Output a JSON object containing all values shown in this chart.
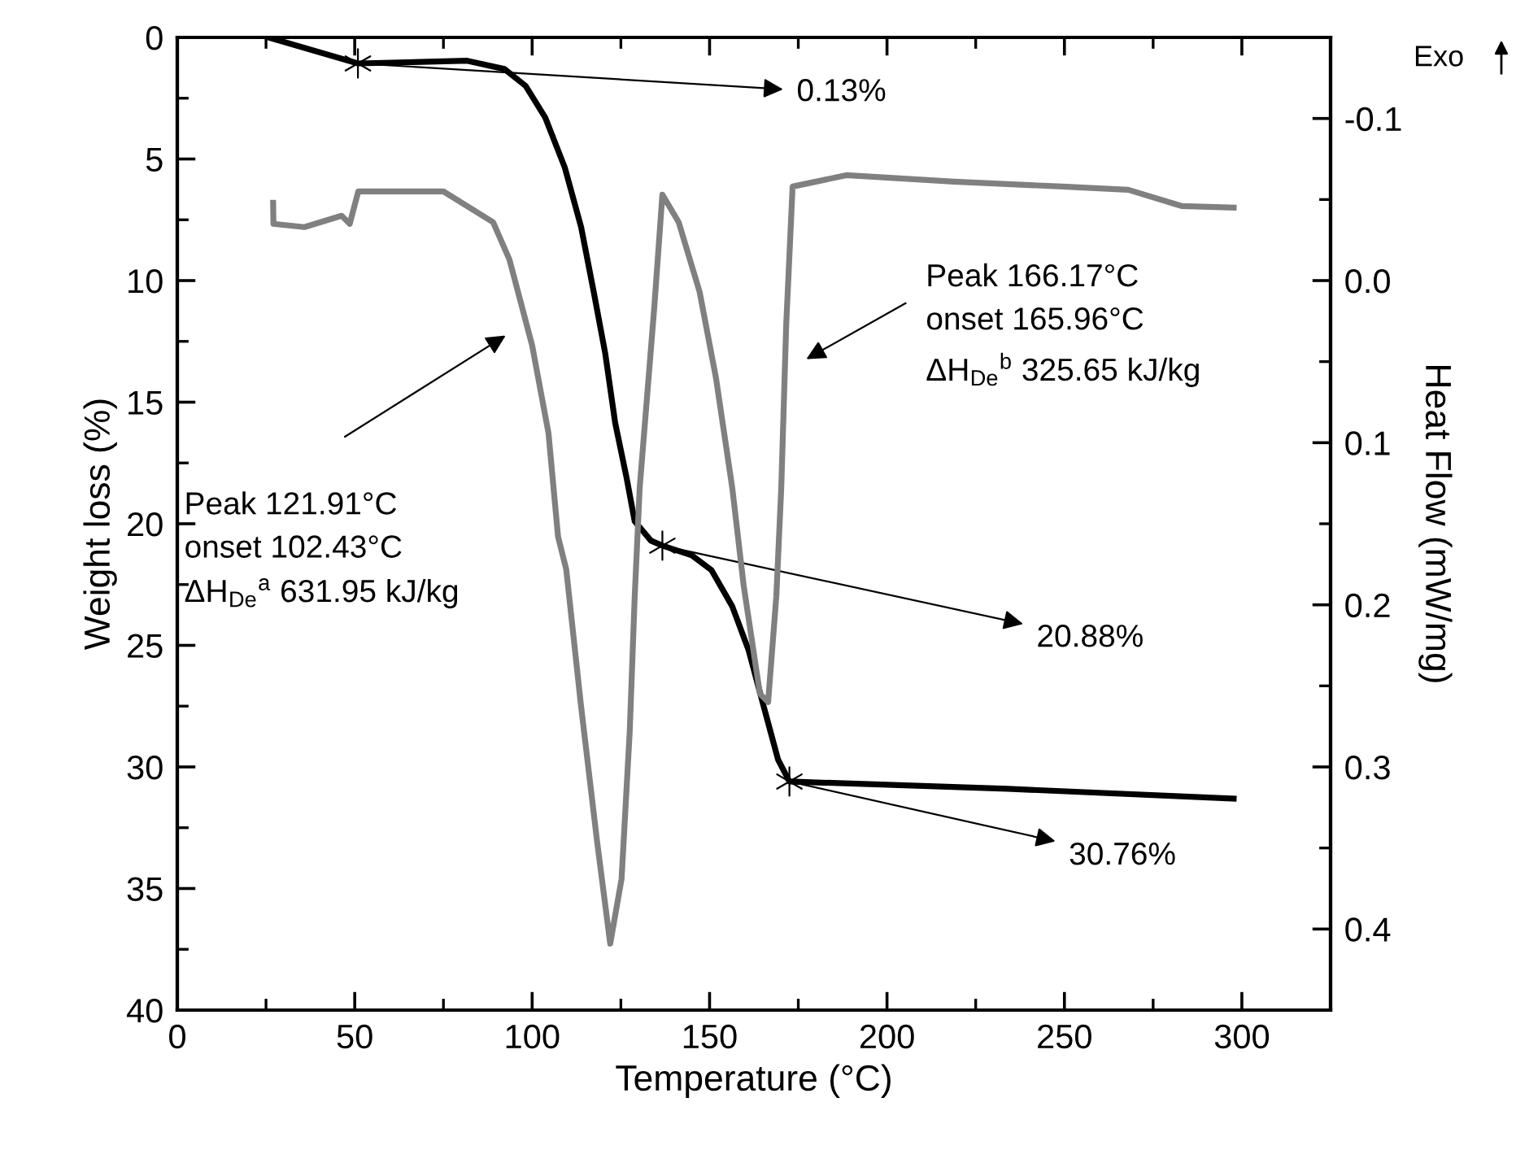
{
  "chart_data": {
    "type": "line",
    "xlabel": "Temperature (°C)",
    "ylabel": "Weight loss (%)",
    "y2label": "Heat Flow (mW/mg)",
    "xlim": [
      0,
      325
    ],
    "xticks": [
      0,
      50,
      100,
      150,
      200,
      250,
      300
    ],
    "ylim": [
      40,
      0
    ],
    "yticks": [
      0,
      5,
      10,
      15,
      20,
      25,
      30,
      35,
      40
    ],
    "y2lim": [
      0.45,
      -0.15
    ],
    "y2ticks": [
      -0.1,
      {
        "value": 0,
        "label": "0.0"
      },
      0.1,
      0.2,
      0.3,
      0.4
    ],
    "grid": false,
    "marker": "none",
    "line_style": "solid",
    "series": [
      {
        "color": "#000000",
        "x": [
          25.7,
          50.9,
          81.7,
          92.2,
          98.2,
          103.7,
          109.2,
          113.8,
          117.4,
          120.6,
          123.4,
          126.6,
          128.9,
          133.5,
          136.7,
          145,
          150.5,
          156.4,
          161,
          165.6,
          169.3,
          172.5,
          234,
          297.7
        ],
        "values": [
          0.0,
          1.07,
          0.96,
          1.3,
          2.0,
          3.3,
          5.35,
          7.8,
          10.5,
          13.0,
          15.85,
          18.1,
          19.9,
          20.7,
          20.9,
          21.3,
          21.9,
          23.4,
          25.2,
          27.7,
          29.7,
          30.6,
          30.9,
          31.3
        ]
      },
      {
        "axis": "y2",
        "color": "#808080",
        "x": [
          27,
          27.1,
          35.8,
          46.3,
          48.6,
          51,
          75,
          89,
          93.6,
          100,
          104.6,
          107.3,
          109.6,
          113.7,
          118.3,
          122,
          125.2,
          127.5,
          128.9,
          130.3,
          134.4,
          136.7,
          141.3,
          147.2,
          151.8,
          156.4,
          159.6,
          164.2,
          166.5,
          168.8,
          170.2,
          171.6,
          173.4,
          188.5,
          219,
          249.5,
          268,
          283,
          297.7
        ],
        "values": [
          -0.048,
          -0.035,
          -0.033,
          -0.04,
          -0.035,
          -0.055,
          -0.055,
          -0.036,
          -0.013,
          0.04,
          0.094,
          0.158,
          0.178,
          0.261,
          0.346,
          0.409,
          0.369,
          0.278,
          0.195,
          0.128,
          0.017,
          -0.053,
          -0.036,
          0.007,
          0.06,
          0.128,
          0.188,
          0.255,
          0.26,
          0.195,
          0.128,
          0.027,
          -0.058,
          -0.065,
          -0.061,
          -0.058,
          -0.056,
          -0.046,
          -0.045
        ]
      },
      {
        "type": "scatter",
        "marker": "cross",
        "color": "#000000",
        "x": [
          50.9,
          136.7,
          172.5
        ],
        "values": [
          1.07,
          20.9,
          30.6
        ]
      }
    ],
    "annotations": [
      {
        "text": "0.13%",
        "x": 50.9,
        "y": 1.07
      },
      {
        "text": "20.88%",
        "x": 136.7,
        "y": 20.9
      },
      {
        "text": "30.76%",
        "x": 172.5,
        "y": 30.6
      },
      "Peak 121.91°C\nonset 102.43°C\nΔH$_{De}$$^{a}$ 631.95 kJ/kg",
      "Peak 166.17°C\nonset 165.96°C\nΔH$_{De}$$^{b}$ 325.65 kJ/kg",
      "Exo"
    ]
  }
}
